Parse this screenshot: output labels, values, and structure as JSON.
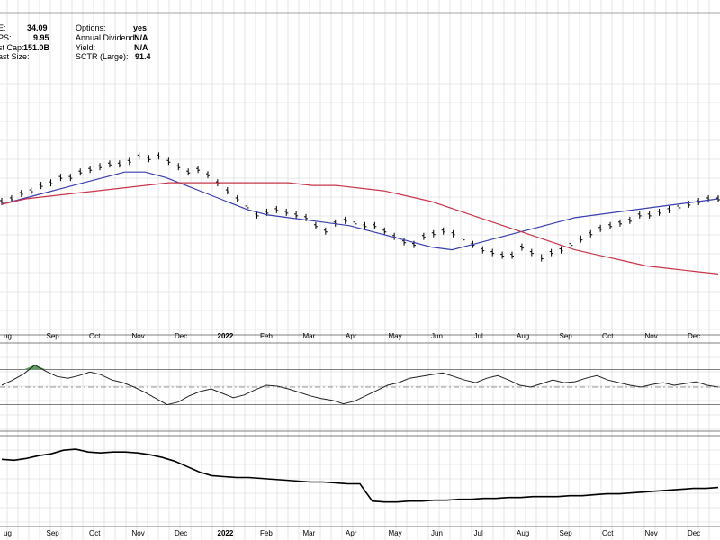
{
  "info_panel": [
    {
      "label": "E:",
      "value": "34.09"
    },
    {
      "label": "PS:",
      "value": "9.95"
    },
    {
      "label": "st Cap:",
      "value": "151.0B"
    },
    {
      "label": "ast Size:",
      "value": ""
    }
  ],
  "info_panel_right": [
    {
      "label": "Options:",
      "value": "yes"
    },
    {
      "label": "Annual Dividend:",
      "value": "N/A"
    },
    {
      "label": "Yield:",
      "value": "N/A"
    },
    {
      "label": "SCTR (Large):",
      "value": "91.4"
    }
  ],
  "colors": {
    "price_bar": "#000000",
    "ma_short": "#3b3fb0",
    "ma_long": "#c8364a",
    "grid": "#d6d6d6",
    "rsi_overbought_fill": "#3d8c3d",
    "rsi_oversold_fill": "#8b2f2f",
    "rsi_line": "#222222",
    "relative_line": "#000000"
  },
  "chart_data": {
    "type": "line",
    "title": "",
    "x_labels": [
      "ug",
      "Sep",
      "Oct",
      "Nov",
      "Dec",
      "2022",
      "Feb",
      "Mar",
      "Apr",
      "May",
      "Jun",
      "Jul",
      "Aug",
      "Sep",
      "Oct",
      "Nov",
      "Dec"
    ],
    "year_label_index": 5,
    "panels": [
      {
        "name": "price",
        "type": "ohlc",
        "y_range": [
          0,
          100
        ],
        "series": [
          {
            "kind": "price",
            "values": [
              49,
              50,
              52,
              53,
              55,
              56,
              58,
              58,
              60,
              61,
              62,
              63,
              63,
              64,
              66,
              65,
              66,
              64,
              62,
              60,
              61,
              59,
              56,
              53,
              50,
              47,
              44,
              45,
              46,
              45,
              44,
              43,
              40,
              38,
              41,
              42,
              41,
              40,
              40,
              38,
              36,
              34,
              33,
              36,
              37,
              38,
              37,
              35,
              33,
              31,
              30,
              29,
              29,
              32,
              30,
              28,
              30,
              31,
              33,
              35,
              37,
              39,
              40,
              41,
              42,
              44,
              44,
              45,
              46,
              47,
              48,
              49,
              50,
              50
            ]
          },
          {
            "kind": "ma_short",
            "values": [
              48,
              50,
              52,
              54,
              56,
              58,
              60,
              60,
              58,
              55,
              52,
              49,
              46,
              44,
              43,
              42,
              41,
              40,
              38,
              36,
              34,
              32,
              31,
              33,
              35,
              37,
              39,
              41,
              43,
              44,
              45,
              46,
              47,
              48,
              49,
              50
            ]
          },
          {
            "kind": "ma_long",
            "values": [
              48,
              50,
              51,
              52,
              53,
              54,
              55,
              56,
              56,
              56,
              56,
              56,
              56,
              55,
              55,
              54,
              53,
              51,
              49,
              46,
              43,
              40,
              37,
              34,
              31,
              29,
              27,
              25,
              24,
              23,
              22
            ]
          }
        ]
      },
      {
        "name": "momentum",
        "type": "line",
        "y_range": [
          0,
          100
        ],
        "upper_band": 70,
        "mid_line": 50,
        "lower_band": 30,
        "values": [
          52,
          58,
          65,
          75,
          68,
          62,
          60,
          63,
          67,
          64,
          58,
          55,
          50,
          44,
          37,
          30,
          33,
          40,
          45,
          48,
          43,
          38,
          41,
          47,
          52,
          51,
          48,
          44,
          40,
          37,
          35,
          31,
          34,
          40,
          46,
          52,
          55,
          60,
          62,
          64,
          66,
          62,
          58,
          55,
          60,
          63,
          58,
          52,
          50,
          54,
          58,
          55,
          56,
          60,
          63,
          58,
          55,
          52,
          50,
          53,
          55,
          52,
          54,
          56,
          52,
          50
        ]
      },
      {
        "name": "relative",
        "type": "line",
        "y_range": [
          0,
          100
        ],
        "values": [
          74,
          73,
          75,
          78,
          80,
          84,
          85,
          82,
          81,
          82,
          82,
          81,
          79,
          76,
          72,
          66,
          60,
          56,
          55,
          54,
          54,
          53,
          52,
          51,
          50,
          49,
          49,
          48,
          47,
          47,
          28,
          27,
          27,
          28,
          28,
          29,
          29,
          30,
          30,
          31,
          31,
          32,
          32,
          33,
          33,
          33,
          34,
          34,
          35,
          36,
          36,
          37,
          38,
          39,
          40,
          41,
          42,
          42,
          43
        ]
      }
    ]
  }
}
